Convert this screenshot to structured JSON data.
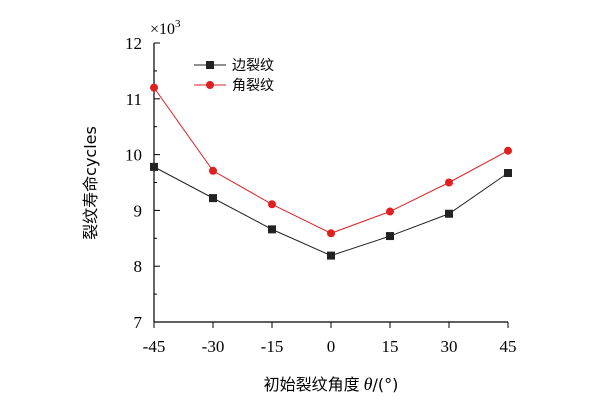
{
  "chart_data": {
    "type": "line",
    "x": [
      -45,
      -30,
      -15,
      0,
      15,
      30,
      45
    ],
    "series": [
      {
        "name": "边裂纹",
        "marker": "square",
        "color": "#222222",
        "values": [
          9.78,
          9.22,
          8.66,
          8.19,
          8.54,
          8.94,
          9.67
        ]
      },
      {
        "name": "角裂纹",
        "marker": "circle",
        "color": "#e02020",
        "values": [
          11.2,
          9.71,
          9.11,
          8.59,
          8.98,
          9.5,
          10.07
        ]
      }
    ],
    "xlim": [
      -45,
      45
    ],
    "ylim": [
      7,
      12
    ],
    "x_ticks": [
      "-45",
      "-30",
      "-15",
      "0",
      "15",
      "30",
      "45"
    ],
    "y_ticks": [
      "7",
      "8",
      "9",
      "10",
      "11",
      "12"
    ],
    "xlabel": "初始裂纹角度",
    "xlabel_symbol": "θ",
    "xlabel_unit": "/(°)",
    "ylabel": "裂纹寿命cycles",
    "y_multiplier_base": "×10",
    "y_multiplier_exp": "3",
    "legend_position": "top-left",
    "grid": false
  }
}
